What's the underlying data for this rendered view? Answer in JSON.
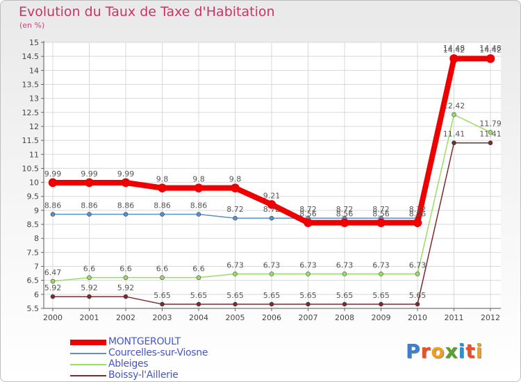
{
  "title": "Evolution du Taux de Taxe d'Habitation",
  "subtitle": "(en %)",
  "logo": {
    "text": "Proxiti",
    "colors": [
      "#3a7fd0",
      "#e8512a",
      "#f0a020",
      "#5aa02c",
      "#2c8fd0",
      "#e8512a",
      "#f0a020"
    ]
  },
  "chart_data": {
    "type": "line",
    "title": "Evolution du Taux de Taxe d'Habitation",
    "ylabel": "(en %)",
    "xlabel": "",
    "x": [
      "2000",
      "2001",
      "2002",
      "2003",
      "2004",
      "2005",
      "2006",
      "2007",
      "2008",
      "2009",
      "2010",
      "2011",
      "2012"
    ],
    "ylim": [
      5.5,
      15
    ],
    "yticks": [
      5.5,
      6,
      6.5,
      7,
      7.5,
      8,
      8.5,
      9,
      9.5,
      10,
      10.5,
      11,
      11.5,
      12,
      12.5,
      13,
      13.5,
      14,
      14.5,
      15
    ],
    "ytick_labels": [
      "5.5",
      "6",
      "6.5",
      "7",
      "7.5",
      "8",
      "8.5",
      "9",
      "9.5",
      "10",
      "10.5",
      "11",
      "11.5",
      "12",
      "12.5",
      "13",
      "13.5",
      "14",
      "14.5",
      "15"
    ],
    "grid": true,
    "legend": "bottom-left",
    "series": [
      {
        "name": "MONTGEROULT",
        "color": "#ee0000",
        "values": [
          9.99,
          9.99,
          9.99,
          9.8,
          9.8,
          9.8,
          9.21,
          8.56,
          8.56,
          8.56,
          8.56,
          14.42,
          14.42
        ],
        "labels": [
          "9.99",
          "9.99",
          "9.99",
          "9.8",
          "9.8",
          "9.8",
          "9.21",
          "8.56",
          "8.56",
          "8.56",
          "8.56",
          "14.42",
          "14.42"
        ]
      },
      {
        "name": "Courcelles-sur-Viosne",
        "color": "#5b8fc7",
        "values": [
          8.86,
          8.86,
          8.86,
          8.86,
          8.86,
          8.72,
          8.72,
          8.72,
          8.72,
          8.72,
          8.72,
          14.48,
          14.48
        ],
        "labels": [
          "8.86",
          "8.86",
          "8.86",
          "8.86",
          "8.86",
          "8.72",
          "8.72",
          "8.72",
          "8.72",
          "8.72",
          "8.72",
          "14.48",
          "14.48"
        ]
      },
      {
        "name": "Ableiges",
        "color": "#99dd66",
        "values": [
          6.47,
          6.6,
          6.6,
          6.6,
          6.6,
          6.73,
          6.73,
          6.73,
          6.73,
          6.73,
          6.73,
          12.42,
          11.79
        ],
        "labels": [
          "6.47",
          "6.6",
          "6.6",
          "6.6",
          "6.6",
          "6.73",
          "6.73",
          "6.73",
          "6.73",
          "6.73",
          "6.73",
          "12.42",
          "11.79"
        ]
      },
      {
        "name": "Boissy-l'Aillerie",
        "color": "#7a2a2a",
        "values": [
          5.92,
          5.92,
          5.92,
          5.65,
          5.65,
          5.65,
          5.65,
          5.65,
          5.65,
          5.65,
          5.65,
          11.41,
          11.41
        ],
        "labels": [
          "5.92",
          "5.92",
          "5.92",
          "5.65",
          "5.65",
          "5.65",
          "5.65",
          "5.65",
          "5.65",
          "5.65",
          "5.65",
          "11.41",
          "11.41"
        ]
      }
    ]
  }
}
